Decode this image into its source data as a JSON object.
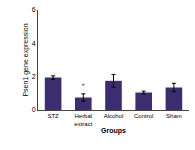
{
  "chart_data": {
    "type": "bar",
    "categories": [
      "STZ",
      "Herbal\nextract",
      "Alcohol",
      "Control",
      "Sham"
    ],
    "values": [
      1.95,
      0.75,
      1.75,
      1.05,
      1.35
    ],
    "errors": [
      0.1,
      0.22,
      0.38,
      0.08,
      0.25
    ],
    "color": "#3b2d6e",
    "xlabel": "Groups",
    "ylabel": "Psen1 gene expression",
    "ylim": [
      0,
      6
    ],
    "yticks": [
      0,
      2,
      4,
      6
    ],
    "grid": false,
    "annotations": [
      {
        "text": "*",
        "category": "Herbal\nextract",
        "color": "#7b5ea7"
      }
    ]
  }
}
